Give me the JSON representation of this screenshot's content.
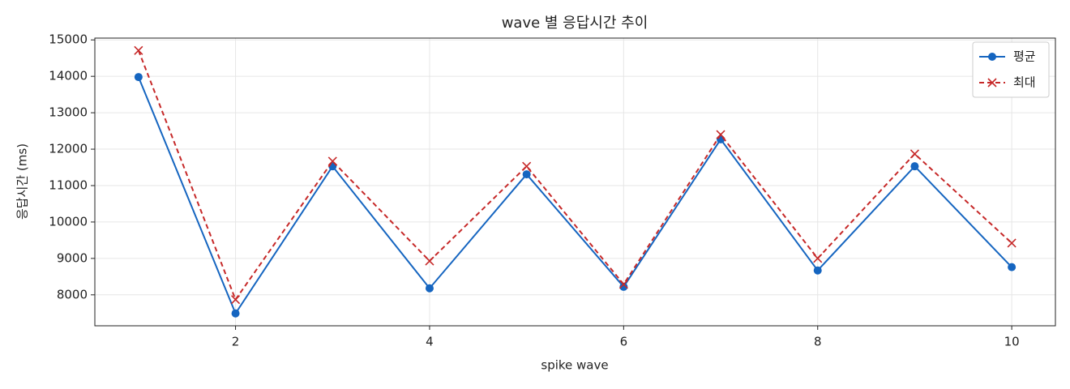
{
  "chart_data": {
    "type": "line",
    "title": "wave 별 응답시간 추이",
    "x_label": "spike wave",
    "y_label": "응답시간 (ms)",
    "x": [
      1,
      2,
      3,
      4,
      5,
      6,
      7,
      8,
      9,
      10
    ],
    "series": [
      {
        "name": "평균",
        "color": "#1565c0",
        "marker": "circle",
        "dash": false,
        "values": [
          13980,
          7490,
          11530,
          8180,
          11310,
          8220,
          12270,
          8670,
          11530,
          8760
        ]
      },
      {
        "name": "최대",
        "color": "#c62828",
        "marker": "x",
        "dash": true,
        "values": [
          14710,
          7870,
          11670,
          8930,
          11530,
          8290,
          12400,
          9000,
          11870,
          9420
        ]
      }
    ],
    "xlim": [
      0.55,
      10.45
    ],
    "xticks": [
      2,
      4,
      6,
      8,
      10
    ],
    "ylim": [
      7150,
      15050
    ],
    "yticks": [
      8000,
      9000,
      10000,
      11000,
      12000,
      13000,
      14000,
      15000
    ],
    "grid": true,
    "legend": "upper right"
  }
}
